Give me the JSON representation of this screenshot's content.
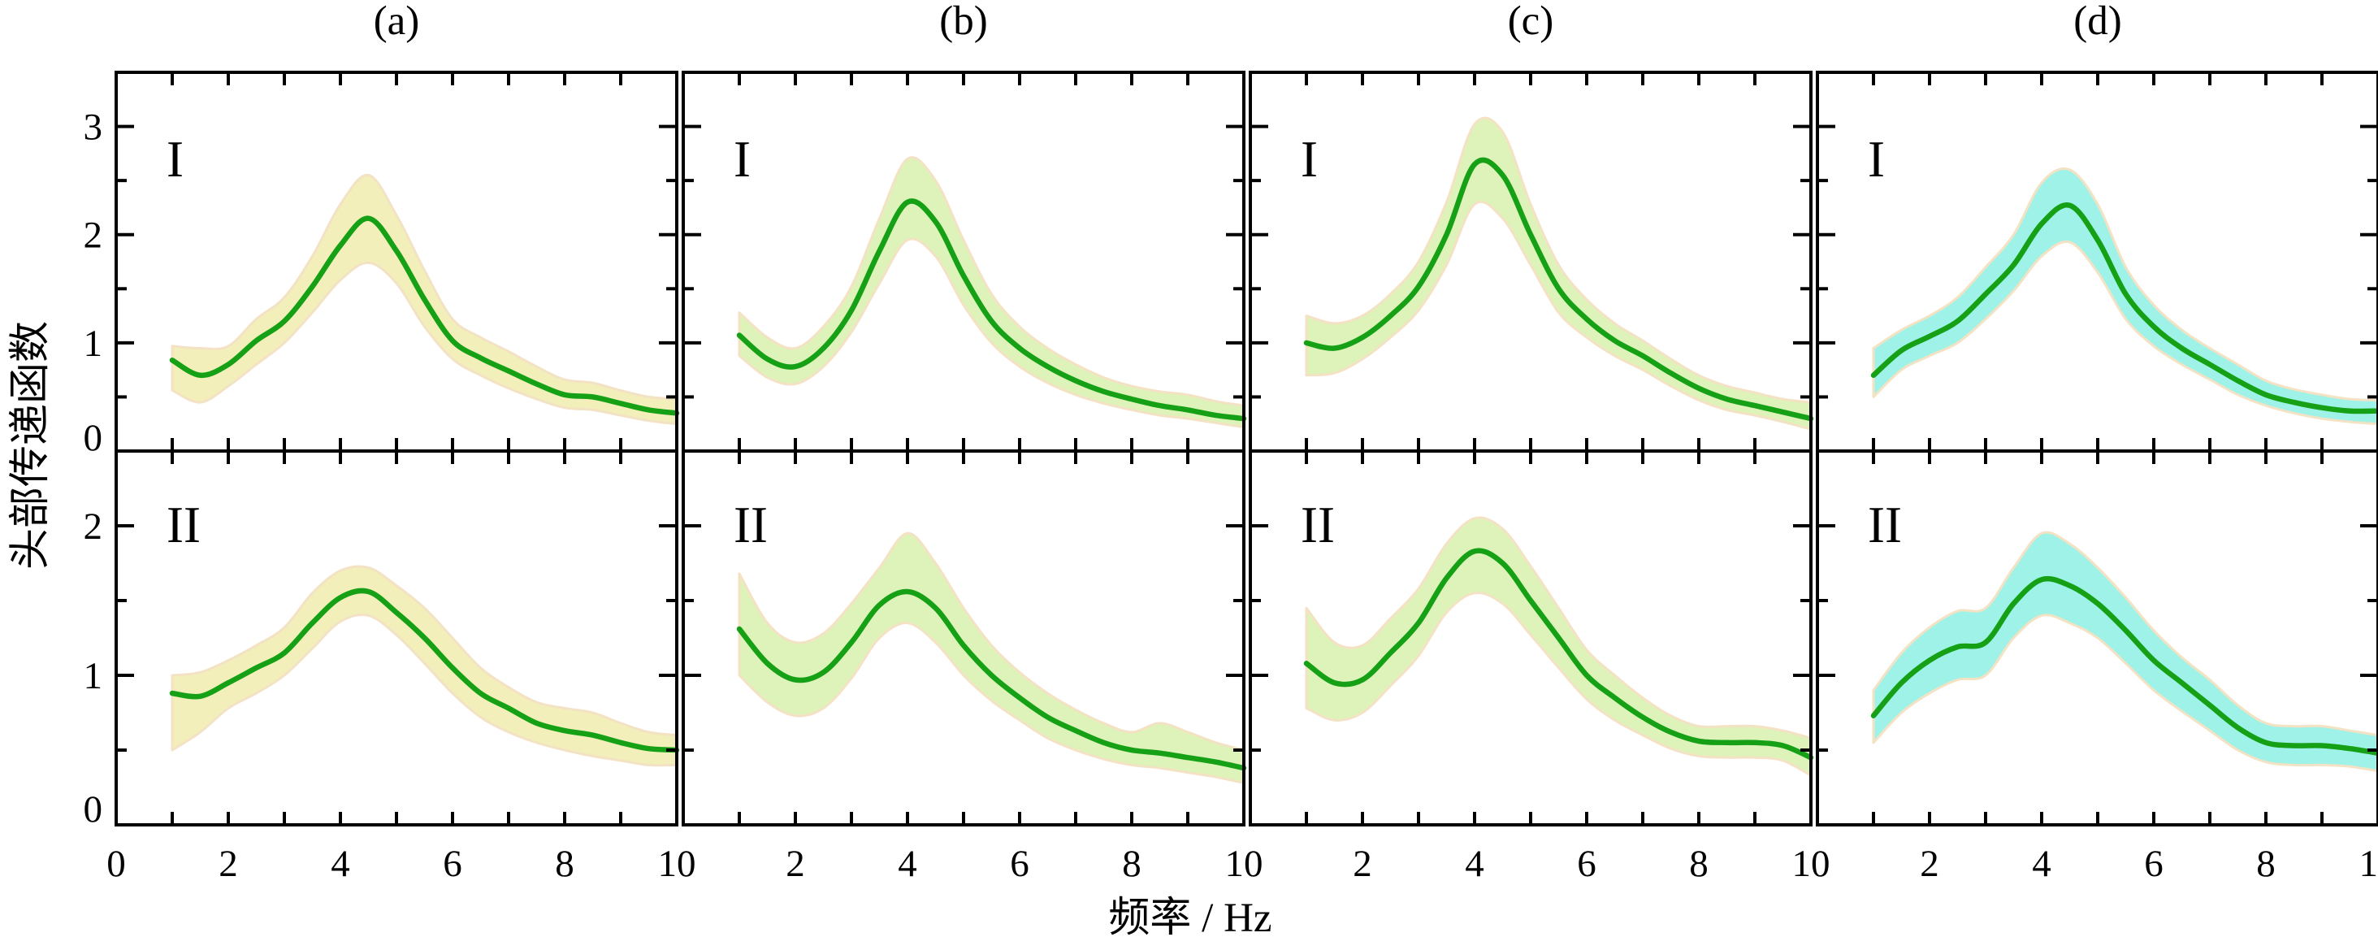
{
  "figure": {
    "colors": {
      "background": "#ffffff",
      "spine": "#000000",
      "line_green": "#15a015",
      "band_edge": "#f3e2c3",
      "band_yellow": "#f2efba",
      "band_green": "#def3ba",
      "band_cyan": "#9ff2e8"
    }
  },
  "axes": {
    "x_label": "频率 / Hz",
    "y_label": "头部传递函数"
  },
  "chart_data": {
    "type": "line",
    "title": "",
    "xlabel": "频率 / Hz",
    "ylabel": "头部传递函数",
    "grid": false,
    "legend": "none",
    "description": "4 columns (a)-(d) x 2 rows (I, II) of mean head-transfer-function curves with shaded confidence bands",
    "x": [
      1,
      1.5,
      2,
      2.5,
      3,
      3.5,
      4,
      4.5,
      5,
      5.5,
      6,
      6.5,
      7,
      7.5,
      8,
      8.5,
      9,
      9.5,
      10
    ],
    "xlim": [
      0,
      10
    ],
    "x_tick_labels_first_column": [
      "0",
      "2",
      "4",
      "6",
      "8",
      "10"
    ],
    "x_tick_labels_other_columns": [
      "2",
      "4",
      "6",
      "8",
      "10"
    ],
    "rows": [
      {
        "name": "I",
        "ylim": [
          0,
          3.5
        ],
        "y_tick_labels": [
          "0",
          "1",
          "2",
          "3"
        ]
      },
      {
        "name": "II",
        "ylim": [
          0,
          2.5
        ],
        "y_tick_labels": [
          "0",
          "1",
          "2"
        ]
      }
    ],
    "columns": [
      {
        "label": "(a)",
        "band_color": "#f2efba",
        "series": {
          "I": {
            "mean": [
              0.84,
              0.7,
              0.8,
              1.02,
              1.2,
              1.52,
              1.9,
              2.15,
              1.85,
              1.4,
              1.02,
              0.86,
              0.74,
              0.62,
              0.52,
              0.5,
              0.44,
              0.38,
              0.35
            ],
            "lower": [
              0.56,
              0.45,
              0.6,
              0.8,
              1.0,
              1.28,
              1.58,
              1.74,
              1.55,
              1.15,
              0.85,
              0.7,
              0.58,
              0.48,
              0.4,
              0.38,
              0.33,
              0.28,
              0.25
            ],
            "upper": [
              0.97,
              0.95,
              0.97,
              1.22,
              1.42,
              1.8,
              2.28,
              2.55,
              2.18,
              1.67,
              1.22,
              1.05,
              0.92,
              0.78,
              0.66,
              0.63,
              0.56,
              0.5,
              0.48
            ]
          },
          "II": {
            "mean": [
              0.88,
              0.86,
              0.95,
              1.05,
              1.15,
              1.35,
              1.52,
              1.56,
              1.42,
              1.25,
              1.05,
              0.88,
              0.78,
              0.68,
              0.63,
              0.6,
              0.55,
              0.51,
              0.5
            ],
            "lower": [
              0.5,
              0.62,
              0.78,
              0.88,
              1.0,
              1.18,
              1.36,
              1.4,
              1.27,
              1.08,
              0.88,
              0.72,
              0.62,
              0.55,
              0.5,
              0.46,
              0.43,
              0.4,
              0.4
            ],
            "upper": [
              1.0,
              1.02,
              1.1,
              1.2,
              1.32,
              1.55,
              1.7,
              1.72,
              1.6,
              1.45,
              1.25,
              1.05,
              0.92,
              0.82,
              0.78,
              0.75,
              0.68,
              0.62,
              0.6
            ]
          }
        }
      },
      {
        "label": "(b)",
        "band_color": "#def3ba",
        "series": {
          "I": {
            "mean": [
              1.07,
              0.85,
              0.78,
              0.95,
              1.3,
              1.85,
              2.3,
              2.12,
              1.62,
              1.2,
              0.95,
              0.78,
              0.65,
              0.55,
              0.48,
              0.42,
              0.38,
              0.33,
              0.3
            ],
            "lower": [
              0.88,
              0.68,
              0.62,
              0.78,
              1.1,
              1.55,
              1.95,
              1.8,
              1.35,
              1.0,
              0.78,
              0.63,
              0.52,
              0.44,
              0.38,
              0.33,
              0.3,
              0.26,
              0.22
            ],
            "upper": [
              1.28,
              1.05,
              0.95,
              1.15,
              1.52,
              2.15,
              2.7,
              2.5,
              1.95,
              1.45,
              1.15,
              0.95,
              0.8,
              0.68,
              0.6,
              0.55,
              0.52,
              0.46,
              0.42
            ]
          },
          "II": {
            "mean": [
              1.31,
              1.08,
              0.97,
              1.02,
              1.22,
              1.47,
              1.56,
              1.45,
              1.2,
              1.0,
              0.85,
              0.72,
              0.63,
              0.55,
              0.5,
              0.48,
              0.45,
              0.42,
              0.38
            ],
            "lower": [
              1.0,
              0.82,
              0.73,
              0.78,
              0.98,
              1.25,
              1.35,
              1.22,
              1.0,
              0.83,
              0.7,
              0.58,
              0.5,
              0.44,
              0.4,
              0.38,
              0.35,
              0.32,
              0.28
            ],
            "upper": [
              1.68,
              1.35,
              1.22,
              1.28,
              1.48,
              1.72,
              1.95,
              1.75,
              1.45,
              1.2,
              1.02,
              0.88,
              0.77,
              0.68,
              0.62,
              0.68,
              0.62,
              0.55,
              0.5
            ]
          }
        }
      },
      {
        "label": "(c)",
        "band_color": "#def3ba",
        "series": {
          "I": {
            "mean": [
              1.0,
              0.95,
              1.05,
              1.25,
              1.52,
              2.0,
              2.65,
              2.55,
              2.0,
              1.5,
              1.22,
              1.02,
              0.88,
              0.72,
              0.58,
              0.48,
              0.42,
              0.36,
              0.3
            ],
            "lower": [
              0.7,
              0.72,
              0.85,
              1.05,
              1.3,
              1.72,
              2.28,
              2.15,
              1.72,
              1.28,
              1.05,
              0.88,
              0.75,
              0.6,
              0.47,
              0.38,
              0.33,
              0.27,
              0.2
            ],
            "upper": [
              1.25,
              1.18,
              1.25,
              1.45,
              1.75,
              2.3,
              3.02,
              2.95,
              2.28,
              1.72,
              1.4,
              1.18,
              1.02,
              0.85,
              0.7,
              0.6,
              0.54,
              0.48,
              0.45
            ]
          },
          "II": {
            "mean": [
              1.08,
              0.95,
              0.97,
              1.15,
              1.35,
              1.65,
              1.83,
              1.75,
              1.5,
              1.25,
              1.0,
              0.85,
              0.72,
              0.62,
              0.56,
              0.55,
              0.55,
              0.53,
              0.45
            ],
            "lower": [
              0.78,
              0.7,
              0.75,
              0.93,
              1.13,
              1.42,
              1.55,
              1.48,
              1.27,
              1.05,
              0.84,
              0.7,
              0.6,
              0.51,
              0.46,
              0.45,
              0.45,
              0.43,
              0.33
            ],
            "upper": [
              1.45,
              1.22,
              1.2,
              1.38,
              1.58,
              1.88,
              2.05,
              1.98,
              1.73,
              1.45,
              1.17,
              1.0,
              0.85,
              0.73,
              0.66,
              0.66,
              0.66,
              0.63,
              0.58
            ]
          }
        }
      },
      {
        "label": "(d)",
        "band_color": "#9ff2e8",
        "series": {
          "I": {
            "mean": [
              0.7,
              0.93,
              1.06,
              1.2,
              1.45,
              1.72,
              2.1,
              2.27,
              1.95,
              1.45,
              1.15,
              0.95,
              0.8,
              0.65,
              0.52,
              0.45,
              0.4,
              0.37,
              0.37
            ],
            "lower": [
              0.5,
              0.75,
              0.88,
              1.0,
              1.22,
              1.48,
              1.8,
              1.93,
              1.65,
              1.22,
              0.97,
              0.8,
              0.66,
              0.52,
              0.42,
              0.35,
              0.3,
              0.27,
              0.25
            ],
            "upper": [
              0.95,
              1.12,
              1.25,
              1.42,
              1.7,
              2.0,
              2.48,
              2.6,
              2.28,
              1.7,
              1.35,
              1.12,
              0.95,
              0.8,
              0.65,
              0.57,
              0.52,
              0.48,
              0.47
            ]
          },
          "II": {
            "mean": [
              0.73,
              0.95,
              1.1,
              1.19,
              1.22,
              1.48,
              1.64,
              1.6,
              1.48,
              1.3,
              1.1,
              0.95,
              0.8,
              0.65,
              0.55,
              0.53,
              0.53,
              0.51,
              0.48
            ],
            "lower": [
              0.55,
              0.75,
              0.88,
              0.97,
              1.0,
              1.25,
              1.4,
              1.35,
              1.25,
              1.08,
              0.9,
              0.76,
              0.63,
              0.5,
              0.42,
              0.4,
              0.4,
              0.39,
              0.36
            ],
            "upper": [
              0.9,
              1.15,
              1.32,
              1.43,
              1.45,
              1.72,
              1.95,
              1.88,
              1.72,
              1.52,
              1.3,
              1.12,
              0.97,
              0.8,
              0.68,
              0.66,
              0.66,
              0.63,
              0.6
            ]
          }
        }
      }
    ]
  }
}
